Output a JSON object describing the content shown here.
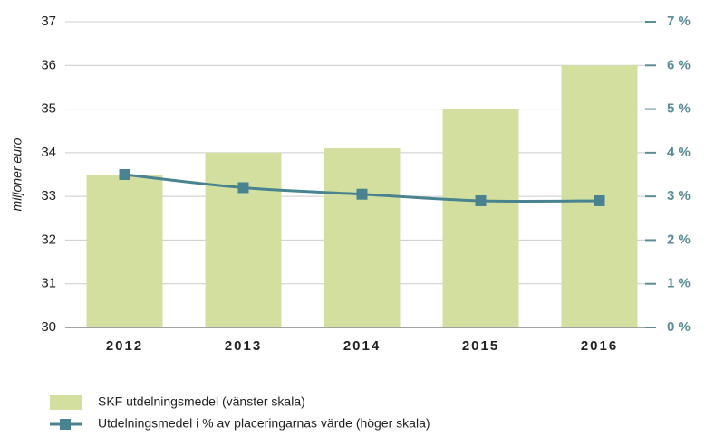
{
  "chart_data": {
    "type": "bar_line",
    "ylabel": "miljoner euro",
    "categories": [
      "2012",
      "2013",
      "2014",
      "2015",
      "2016"
    ],
    "series": [
      {
        "name": "SKF utdelningsmedel (vänster skala)",
        "type": "bar",
        "color": "#d3df9f",
        "values": [
          33.5,
          34,
          34.1,
          35,
          36
        ]
      },
      {
        "name": "Utdelningsmedel i % av placeringarnas värde (höger skala)",
        "type": "line",
        "axis": "y2",
        "color": "#4a8390",
        "values": [
          3.5,
          3.2,
          3.05,
          2.9,
          2.9
        ]
      }
    ],
    "ylim": [
      30,
      37
    ],
    "yticks": [
      30,
      31,
      32,
      33,
      34,
      35,
      36,
      37
    ],
    "y2lim": [
      0,
      7
    ],
    "y2ticks": [
      {
        "value": 0,
        "label": "0 %"
      },
      {
        "value": 1,
        "label": "1 %"
      },
      {
        "value": 2,
        "label": "2 %"
      },
      {
        "value": 3,
        "label": "3 %"
      },
      {
        "value": 4,
        "label": "4 %"
      },
      {
        "value": 5,
        "label": "5 %"
      },
      {
        "value": 6,
        "label": "6 %"
      },
      {
        "value": 7,
        "label": "7 %"
      }
    ],
    "grid": true
  }
}
